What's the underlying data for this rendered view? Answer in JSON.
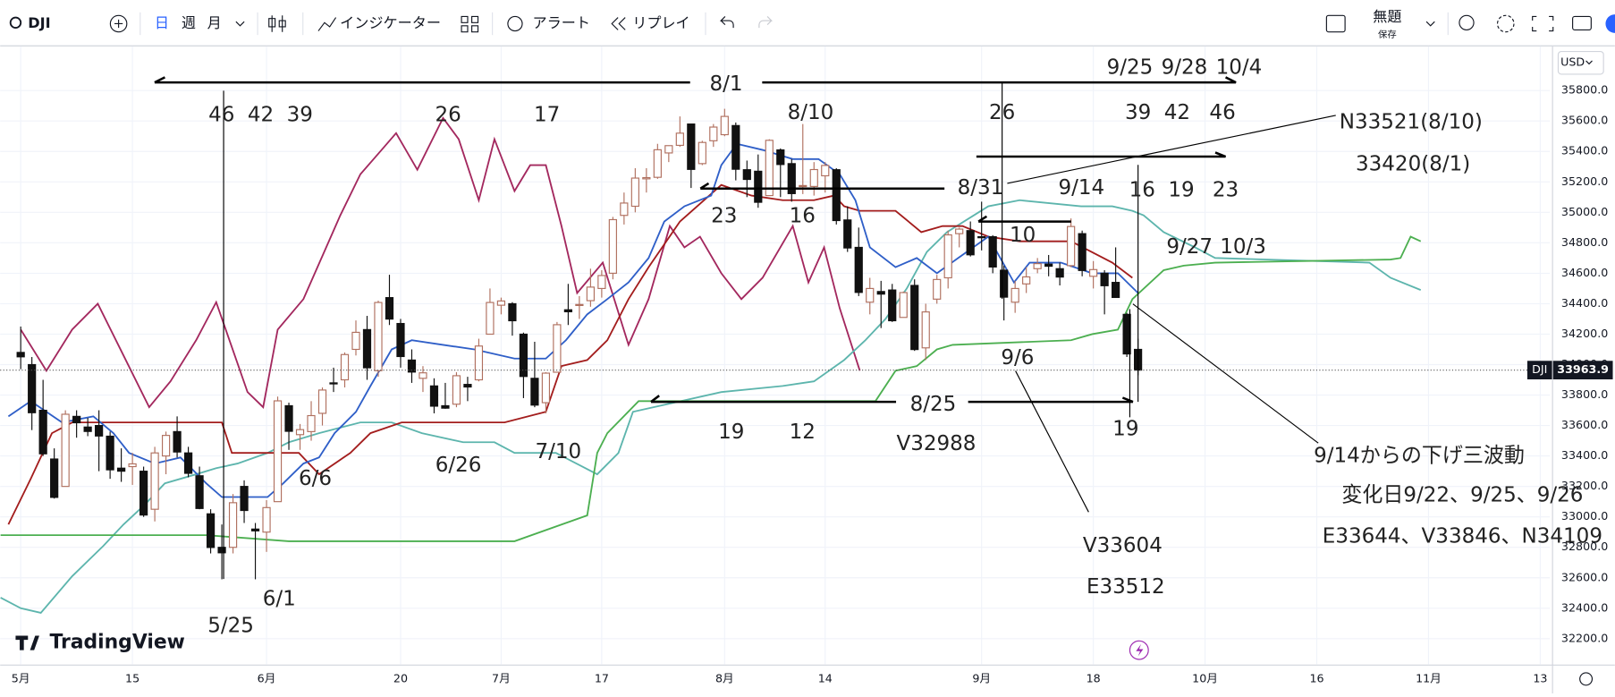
{
  "ui": {
    "symbol": "DJI",
    "intervals": [
      "日",
      "週",
      "月"
    ],
    "indicators": "インジケーター",
    "alert": "アラート",
    "replay": "リプレイ",
    "layout_name": "無題",
    "save": "保存",
    "currency": "USD",
    "logo": "TradingView"
  },
  "chart_data": {
    "type": "candlestick",
    "up_color": "#b0705f",
    "down_color": "#111111",
    "candles": [
      [
        34080,
        34250,
        33970,
        34051
      ],
      [
        34000,
        34050,
        33570,
        33684
      ],
      [
        33700,
        33900,
        33400,
        33414
      ],
      [
        33380,
        33450,
        33120,
        33128
      ],
      [
        33200,
        33700,
        33200,
        33674
      ],
      [
        33660,
        33700,
        33520,
        33618
      ],
      [
        33590,
        33650,
        33530,
        33561
      ],
      [
        33600,
        33700,
        33300,
        33531
      ],
      [
        33530,
        33560,
        33250,
        33309
      ],
      [
        33320,
        33450,
        33230,
        33300
      ],
      [
        33330,
        33420,
        33210,
        33348
      ],
      [
        33300,
        33330,
        33000,
        33012
      ],
      [
        33050,
        33460,
        32970,
        33420
      ],
      [
        33400,
        33560,
        33280,
        33535
      ],
      [
        33560,
        33660,
        33390,
        33426
      ],
      [
        33420,
        33460,
        33260,
        33286
      ],
      [
        33270,
        33330,
        33050,
        33055
      ],
      [
        33020,
        33050,
        32760,
        32799
      ],
      [
        32800,
        32950,
        32590,
        32764
      ],
      [
        32800,
        33150,
        32760,
        33093
      ],
      [
        33200,
        33240,
        32960,
        33042
      ],
      [
        32920,
        32960,
        32590,
        32908
      ],
      [
        32900,
        33110,
        32770,
        33061
      ],
      [
        33100,
        33790,
        33100,
        33762
      ],
      [
        33730,
        33750,
        33440,
        33562
      ],
      [
        33540,
        33610,
        33440,
        33573
      ],
      [
        33560,
        33760,
        33500,
        33665
      ],
      [
        33680,
        33850,
        33600,
        33833
      ],
      [
        33880,
        33980,
        33820,
        33876
      ],
      [
        33900,
        34080,
        33850,
        34066
      ],
      [
        34100,
        34290,
        34060,
        34212
      ],
      [
        34230,
        34320,
        33900,
        33979
      ],
      [
        33960,
        34420,
        33920,
        34408
      ],
      [
        34440,
        34590,
        34260,
        34299
      ],
      [
        34270,
        34300,
        33980,
        34053
      ],
      [
        34030,
        34100,
        33880,
        33951
      ],
      [
        33910,
        33990,
        33820,
        33946
      ],
      [
        33860,
        33910,
        33680,
        33727
      ],
      [
        33730,
        33880,
        33710,
        33714
      ],
      [
        33740,
        33950,
        33720,
        33927
      ],
      [
        33870,
        33920,
        33760,
        33853
      ],
      [
        33900,
        34170,
        33890,
        34122
      ],
      [
        34200,
        34500,
        34200,
        34408
      ],
      [
        34390,
        34440,
        34330,
        34418
      ],
      [
        34400,
        34410,
        34190,
        34288
      ],
      [
        34200,
        34210,
        33780,
        33922
      ],
      [
        33910,
        34150,
        33720,
        33734
      ],
      [
        33750,
        33950,
        33680,
        33944
      ],
      [
        33950,
        34280,
        33950,
        34262
      ],
      [
        34360,
        34530,
        34260,
        34347
      ],
      [
        34390,
        34450,
        34300,
        34395
      ],
      [
        34420,
        34630,
        34380,
        34509
      ],
      [
        34500,
        34620,
        34440,
        34585
      ],
      [
        34600,
        34970,
        34560,
        34952
      ],
      [
        34980,
        35130,
        34920,
        35061
      ],
      [
        35040,
        35290,
        35000,
        35225
      ],
      [
        35220,
        35290,
        35130,
        35228
      ],
      [
        35230,
        35450,
        35220,
        35411
      ],
      [
        35390,
        35440,
        35330,
        35438
      ],
      [
        35440,
        35630,
        35430,
        35520
      ],
      [
        35580,
        35580,
        35160,
        35282
      ],
      [
        35320,
        35470,
        35310,
        35459
      ],
      [
        35470,
        35580,
        35430,
        35560
      ],
      [
        35510,
        35680,
        35500,
        35630
      ],
      [
        35570,
        35590,
        35210,
        35283
      ],
      [
        35280,
        35340,
        35100,
        35216
      ],
      [
        35270,
        35380,
        35030,
        35066
      ],
      [
        35110,
        35480,
        35110,
        35473
      ],
      [
        35410,
        35420,
        35100,
        35314
      ],
      [
        35320,
        35350,
        35070,
        35123
      ],
      [
        35170,
        35580,
        35120,
        35176
      ],
      [
        35170,
        35330,
        35110,
        35281
      ],
      [
        35240,
        35330,
        35130,
        35308
      ],
      [
        35280,
        35290,
        34920,
        34946
      ],
      [
        34950,
        35040,
        34740,
        34766
      ],
      [
        34770,
        34900,
        34450,
        34474
      ],
      [
        34410,
        34570,
        34330,
        34500
      ],
      [
        34480,
        34550,
        34240,
        34463
      ],
      [
        34490,
        34530,
        34280,
        34288
      ],
      [
        34310,
        34480,
        34310,
        34473
      ],
      [
        34520,
        34560,
        34090,
        34099
      ],
      [
        34110,
        34400,
        34030,
        34346
      ],
      [
        34430,
        34590,
        34400,
        34559
      ],
      [
        34570,
        34880,
        34500,
        34852
      ],
      [
        34860,
        34900,
        34770,
        34890
      ],
      [
        34880,
        34940,
        34710,
        34721
      ],
      [
        34840,
        35070,
        34750,
        34837
      ],
      [
        34840,
        34850,
        34600,
        34641
      ],
      [
        34620,
        34650,
        34290,
        34443
      ],
      [
        34410,
        34550,
        34340,
        34500
      ],
      [
        34530,
        34640,
        34470,
        34576
      ],
      [
        34630,
        34700,
        34600,
        34663
      ],
      [
        34660,
        34720,
        34580,
        34646
      ],
      [
        34630,
        34670,
        34520,
        34575
      ],
      [
        34650,
        34960,
        34640,
        34907
      ],
      [
        34860,
        34880,
        34580,
        34618
      ],
      [
        34580,
        34680,
        34500,
        34624
      ],
      [
        34600,
        34620,
        34330,
        34518
      ],
      [
        34540,
        34770,
        34440,
        34441
      ],
      [
        34330,
        34340,
        34050,
        34070
      ],
      [
        34100,
        34170,
        33930,
        33963.9
      ]
    ],
    "series": [
      {
        "color": "#a3285e",
        "x": [
          0,
          2.3,
          4.6,
          6.9,
          9.2,
          11.5,
          13.4,
          15.7,
          17.5,
          20.3,
          21.7,
          23,
          25.3,
          28.6,
          30.4,
          32.3,
          33.6,
          35.5,
          37.8,
          39.2,
          41,
          42.4,
          44.2,
          45.6,
          47,
          48.4,
          49.8,
          52.1,
          54.4,
          56.2,
          58.1,
          59.4,
          60.8,
          62.7,
          64.5,
          66.4,
          69.1,
          70.5,
          71.9,
          73.3,
          75.1
        ],
        "values": [
          34230,
          33960,
          34230,
          34400,
          34060,
          33720,
          33890,
          34160,
          34410,
          33820,
          33720,
          34230,
          34430,
          34980,
          35250,
          35410,
          35520,
          35280,
          35620,
          35480,
          35080,
          35480,
          35140,
          35310,
          35310,
          34910,
          34470,
          34670,
          34130,
          34430,
          34910,
          34770,
          34840,
          34600,
          34430,
          34570,
          34910,
          34540,
          34770,
          34370,
          33960
        ]
      },
      {
        "color": "#5db5ad",
        "x": [
          -1.8,
          0,
          1.8,
          4.6,
          7.4,
          9.2,
          11.1,
          12.9,
          15.7,
          17.5,
          19.4,
          22.1,
          24,
          26.7,
          30.4,
          33.2,
          35.9,
          39.6,
          42.4,
          44.2,
          47.9,
          51.6,
          53.5,
          54.8,
          62.7,
          68.2,
          71,
          73.7,
          75.6,
          77.4,
          79.3,
          81.1,
          82.9,
          86.6,
          89.4,
          94.9,
          97.7,
          99.5,
          100.5,
          102.3,
          105.1,
          106.9,
          120.7,
          122.6,
          125.3
        ],
        "values": [
          32470,
          32400,
          32370,
          32610,
          32810,
          32950,
          33080,
          33220,
          33280,
          33320,
          33350,
          33420,
          33490,
          33550,
          33620,
          33620,
          33550,
          33490,
          33490,
          33420,
          33420,
          33280,
          33420,
          33690,
          33820,
          33860,
          33890,
          34030,
          34160,
          34300,
          34500,
          34740,
          34870,
          35040,
          35080,
          35040,
          35040,
          35010,
          34980,
          34870,
          34770,
          34700,
          34670,
          34570,
          34490
        ]
      },
      {
        "color": "#4caf50",
        "x": [
          -1.8,
          2.8,
          16.6,
          24,
          44.2,
          50.7,
          51.6,
          52.5,
          55.3,
          62.7,
          76.5,
          78.3,
          80.2,
          82,
          83.4,
          94,
          95.9,
          98.2,
          99.5,
          102.3,
          104.1,
          106.9,
          122.6,
          123.5,
          124.4,
          125.3
        ],
        "values": [
          32880,
          32880,
          32880,
          32840,
          32840,
          33010,
          33420,
          33550,
          33760,
          33760,
          33760,
          33960,
          33990,
          34100,
          34130,
          34160,
          34200,
          34230,
          34430,
          34620,
          34650,
          34670,
          34690,
          34700,
          34840,
          34810
        ]
      },
      {
        "color": "#a31d1d",
        "x": [
          -1.1,
          0.9,
          2.8,
          4.6,
          9.2,
          12,
          18,
          18.9,
          24.9,
          26.7,
          29.5,
          31.3,
          34.1,
          36.9,
          40.6,
          43.3,
          47,
          48.4,
          50.7,
          52.5,
          54.4,
          56.2,
          59,
          62.7,
          65.4,
          68.2,
          71,
          72.8,
          73.7,
          75.1,
          78.3,
          80.6,
          82.5,
          84.3,
          86.6,
          89.4,
          94,
          97.7,
          99.5
        ],
        "values": [
          32950,
          33250,
          33550,
          33620,
          33620,
          33620,
          33620,
          33420,
          33420,
          33280,
          33420,
          33550,
          33620,
          33620,
          33620,
          33620,
          33690,
          33990,
          34030,
          34160,
          34430,
          34640,
          34940,
          35180,
          35110,
          35080,
          35080,
          35110,
          35040,
          35010,
          35010,
          34870,
          34910,
          34910,
          34840,
          34810,
          34810,
          34670,
          34570
        ]
      },
      {
        "color": "#2f5fc8",
        "x": [
          -1.1,
          0.9,
          3.7,
          6.5,
          8.3,
          9.7,
          12,
          14.3,
          16.6,
          18,
          20.3,
          22.1,
          23.5,
          25.3,
          26.7,
          28.1,
          30,
          31.3,
          33.2,
          35,
          37.8,
          40.6,
          44.2,
          47,
          48.8,
          50.7,
          52.5,
          54.4,
          56.2,
          57.6,
          59.4,
          61.8,
          62.7,
          64.1,
          66.4,
          69.1,
          71.4,
          73.3,
          74.7,
          76,
          78.3,
          80.2,
          82,
          83.9,
          86.6,
          88.9,
          90.3,
          93.1,
          95.9,
          98.2,
          100
        ],
        "values": [
          33660,
          33760,
          33620,
          33660,
          33550,
          33420,
          33350,
          33390,
          33220,
          33130,
          33130,
          33130,
          33220,
          33350,
          33390,
          33550,
          33690,
          33860,
          34100,
          34160,
          34130,
          34100,
          34040,
          34040,
          34160,
          34330,
          34430,
          34540,
          34700,
          34940,
          35040,
          35110,
          35310,
          35450,
          35410,
          35350,
          35350,
          35250,
          35080,
          34770,
          34640,
          34700,
          34600,
          34700,
          34840,
          34540,
          34670,
          34670,
          34600,
          34600,
          34470
        ]
      }
    ],
    "xlim": [
      -1.84,
      136.87
    ],
    "xticks": [
      {
        "value": 0,
        "label": "5月"
      },
      {
        "value": 10,
        "label": "15"
      },
      {
        "value": 22,
        "label": "6月"
      },
      {
        "value": 34,
        "label": "20"
      },
      {
        "value": 43,
        "label": "7月"
      },
      {
        "value": 52,
        "label": "17"
      },
      {
        "value": 63,
        "label": "8月"
      },
      {
        "value": 72,
        "label": "14"
      },
      {
        "value": 86,
        "label": "9月"
      },
      {
        "value": 96,
        "label": "18"
      },
      {
        "value": 106,
        "label": "10月"
      },
      {
        "value": 116,
        "label": "16"
      },
      {
        "value": 126,
        "label": "11月"
      },
      {
        "value": 136,
        "label": "13"
      }
    ],
    "ylim": [
      32030,
      36090
    ],
    "yticks": [
      {
        "value": 32200,
        "label": "32200.0"
      },
      {
        "value": 32400,
        "label": "32400.0"
      },
      {
        "value": 32600,
        "label": "32600.0"
      },
      {
        "value": 32800,
        "label": "32800.0"
      },
      {
        "value": 33000,
        "label": "33000.0"
      },
      {
        "value": 33200,
        "label": "33200.0"
      },
      {
        "value": 33400,
        "label": "33400.0"
      },
      {
        "value": 33600,
        "label": "33600.0"
      },
      {
        "value": 33800,
        "label": "33800.0"
      },
      {
        "value": 34000,
        "label": "34000.0"
      },
      {
        "value": 34200,
        "label": "34200.0"
      },
      {
        "value": 34400,
        "label": "34400.0"
      },
      {
        "value": 34600,
        "label": "34600.0"
      },
      {
        "value": 34800,
        "label": "34800.0"
      },
      {
        "value": 35000,
        "label": "35000.0"
      },
      {
        "value": 35200,
        "label": "35200.0"
      },
      {
        "value": 35400,
        "label": "35400.0"
      },
      {
        "value": 35600,
        "label": "35600.0"
      },
      {
        "value": 35800,
        "label": "35800.0"
      }
    ],
    "grid": true,
    "annotations": [
      "8/1",
      "46",
      "42",
      "39",
      "26",
      "17",
      "8/10",
      "26",
      "39",
      "42",
      "46",
      "9/25",
      "9/28",
      "10/4",
      "N33521(8/10)",
      "33420(8/1)",
      "8/31",
      "9/14",
      "16",
      "19",
      "23",
      "23",
      "16",
      "10",
      "9/27",
      "10/3",
      "9/6",
      "8/25",
      "19",
      "12",
      "V32988",
      "19",
      "7/10",
      "6/26",
      "6/6",
      "6/1",
      "5/25",
      "V33604",
      "E33512",
      "9/14からの下げ三波動",
      "変化日9/22、9/25、9/26",
      "E33644、V33846、N34109"
    ]
  }
}
